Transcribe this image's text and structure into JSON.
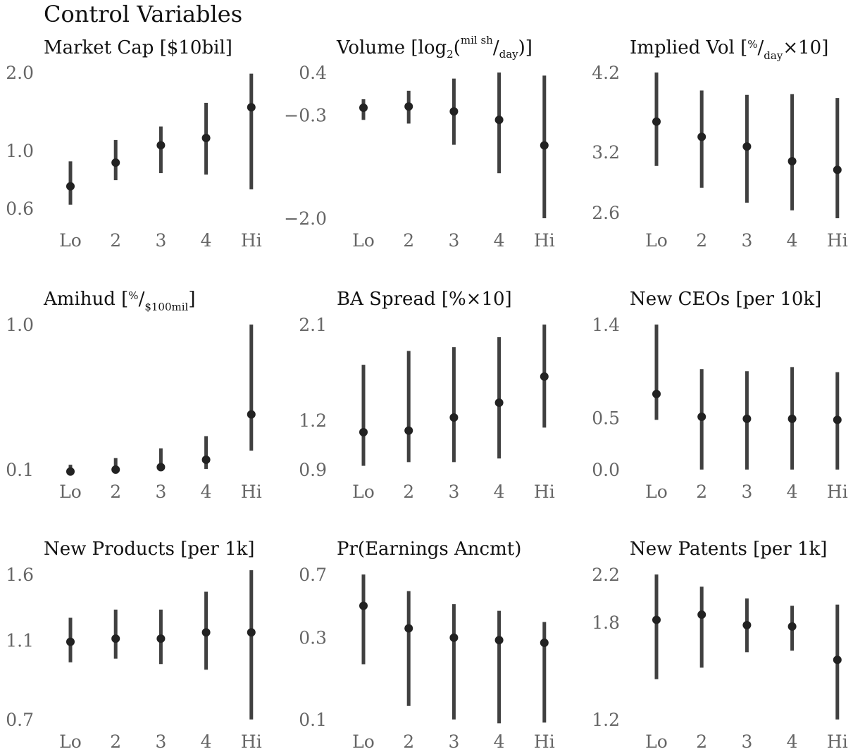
{
  "title": "Control Variables",
  "chart_data": [
    {
      "type": "scatter",
      "title_parts": [
        "Market Cap [$10bil]"
      ],
      "categories": [
        "Lo",
        "2",
        "3",
        "4",
        "Hi"
      ],
      "yscale": "log",
      "ylim": [
        0.55,
        2.0
      ],
      "yticks": [
        2.0,
        1.0,
        0.6
      ],
      "ytick_labels": [
        "2.0",
        "1.0",
        "0.6"
      ],
      "series": [
        {
          "values": [
            0.73,
            0.9,
            1.05,
            1.12,
            1.47
          ],
          "lower": [
            0.62,
            0.77,
            0.82,
            0.81,
            0.71
          ],
          "upper": [
            0.91,
            1.1,
            1.24,
            1.53,
            1.98
          ]
        }
      ]
    },
    {
      "type": "scatter",
      "title_parts": [
        "Volume [log",
        "2",
        "(",
        "mil sh",
        "/",
        "day",
        ")]"
      ],
      "categories": [
        "Lo",
        "2",
        "3",
        "4",
        "Hi"
      ],
      "yscale": "linear",
      "ylim": [
        -2.0,
        0.4
      ],
      "yticks": [
        0.4,
        -0.3,
        -2.0
      ],
      "ytick_labels": [
        "0.4",
        "−0.3",
        "−2.0"
      ],
      "series": [
        {
          "values": [
            -0.18,
            -0.16,
            -0.24,
            -0.38,
            -0.8
          ],
          "lower": [
            -0.38,
            -0.44,
            -0.79,
            -1.26,
            -2.0
          ],
          "upper": [
            -0.04,
            0.1,
            0.3,
            0.4,
            0.35
          ]
        }
      ]
    },
    {
      "type": "scatter",
      "title_parts": [
        "Implied Vol [",
        "%",
        "/",
        "day",
        "×10]"
      ],
      "categories": [
        "Lo",
        "2",
        "3",
        "4",
        "Hi"
      ],
      "yscale": "log",
      "ylim": [
        2.55,
        4.2
      ],
      "yticks": [
        4.2,
        3.2,
        2.6
      ],
      "ytick_labels": [
        "4.2",
        "3.2",
        "2.6"
      ],
      "series": [
        {
          "values": [
            3.55,
            3.37,
            3.26,
            3.1,
            3.01
          ],
          "lower": [
            3.05,
            2.83,
            2.69,
            2.62,
            2.55
          ],
          "upper": [
            4.2,
            3.95,
            3.89,
            3.9,
            3.85
          ]
        }
      ]
    },
    {
      "type": "scatter",
      "title_parts": [
        "Amihud [",
        "%",
        "/",
        "$100mil",
        "]"
      ],
      "categories": [
        "Lo",
        "2",
        "3",
        "4",
        "Hi"
      ],
      "yscale": "log",
      "ylim": [
        0.1,
        1.0
      ],
      "yticks": [
        1.0,
        0.1
      ],
      "ytick_labels": [
        "1.0",
        "0.1"
      ],
      "series": [
        {
          "values": [
            0.097,
            0.1,
            0.104,
            0.117,
            0.24
          ],
          "lower": [
            0.094,
            0.096,
            0.098,
            0.101,
            0.135
          ],
          "upper": [
            0.108,
            0.12,
            0.14,
            0.17,
            1.0
          ]
        }
      ]
    },
    {
      "type": "scatter",
      "title_parts": [
        "BA Spread [%×10]"
      ],
      "categories": [
        "Lo",
        "2",
        "3",
        "4",
        "Hi"
      ],
      "yscale": "log",
      "ylim": [
        0.9,
        2.1
      ],
      "yticks": [
        2.1,
        1.2,
        0.9
      ],
      "ytick_labels": [
        "2.1",
        "1.2",
        "0.9"
      ],
      "series": [
        {
          "values": [
            1.12,
            1.13,
            1.22,
            1.33,
            1.55
          ],
          "lower": [
            0.92,
            0.94,
            0.94,
            0.96,
            1.15
          ],
          "upper": [
            1.66,
            1.8,
            1.84,
            1.95,
            2.1
          ]
        }
      ]
    },
    {
      "type": "scatter",
      "title_parts": [
        "New CEOs [per 10k]"
      ],
      "categories": [
        "Lo",
        "2",
        "3",
        "4",
        "Hi"
      ],
      "yscale": "linear",
      "ylim": [
        0.0,
        1.4
      ],
      "yticks": [
        1.4,
        0.5,
        0.0
      ],
      "ytick_labels": [
        "1.4",
        "0.5",
        "0.0"
      ],
      "series": [
        {
          "values": [
            0.73,
            0.51,
            0.49,
            0.49,
            0.48
          ],
          "lower": [
            0.48,
            0.0,
            0.0,
            0.0,
            0.0
          ],
          "upper": [
            1.4,
            0.97,
            0.95,
            0.99,
            0.94
          ]
        }
      ]
    },
    {
      "type": "scatter",
      "title_parts": [
        "New Products [per 1k]"
      ],
      "categories": [
        "Lo",
        "2",
        "3",
        "4",
        "Hi"
      ],
      "yscale": "log",
      "ylim": [
        0.7,
        1.6
      ],
      "yticks": [
        1.6,
        1.1,
        0.7
      ],
      "ytick_labels": [
        "1.6",
        "1.1",
        "0.7"
      ],
      "series": [
        {
          "values": [
            1.09,
            1.11,
            1.11,
            1.15,
            1.15
          ],
          "lower": [
            0.97,
            0.99,
            0.96,
            0.93,
            0.7
          ],
          "upper": [
            1.25,
            1.31,
            1.31,
            1.45,
            1.64
          ]
        }
      ]
    },
    {
      "type": "scatter",
      "title_parts": [
        "Pr(Earnings Ancmt)"
      ],
      "categories": [
        "Lo",
        "2",
        "3",
        "4",
        "Hi"
      ],
      "yscale": "log",
      "ylim": [
        0.1,
        0.7
      ],
      "yticks": [
        0.7,
        0.3,
        0.1
      ],
      "ytick_labels": [
        "0.7",
        "0.3",
        "0.1"
      ],
      "series": [
        {
          "values": [
            0.46,
            0.34,
            0.3,
            0.29,
            0.28
          ],
          "lower": [
            0.21,
            0.12,
            0.1,
            0.095,
            0.096
          ],
          "upper": [
            0.7,
            0.56,
            0.47,
            0.43,
            0.37
          ]
        }
      ]
    },
    {
      "type": "scatter",
      "title_parts": [
        "New Patents [per 1k]"
      ],
      "categories": [
        "Lo",
        "2",
        "3",
        "4",
        "Hi"
      ],
      "yscale": "log",
      "ylim": [
        1.2,
        2.2
      ],
      "yticks": [
        2.2,
        1.8,
        1.2
      ],
      "ytick_labels": [
        "2.2",
        "1.8",
        "1.2"
      ],
      "series": [
        {
          "values": [
            1.82,
            1.86,
            1.78,
            1.77,
            1.54
          ],
          "lower": [
            1.42,
            1.49,
            1.59,
            1.6,
            1.2
          ],
          "upper": [
            2.2,
            2.09,
            1.99,
            1.93,
            1.94
          ]
        }
      ]
    }
  ]
}
